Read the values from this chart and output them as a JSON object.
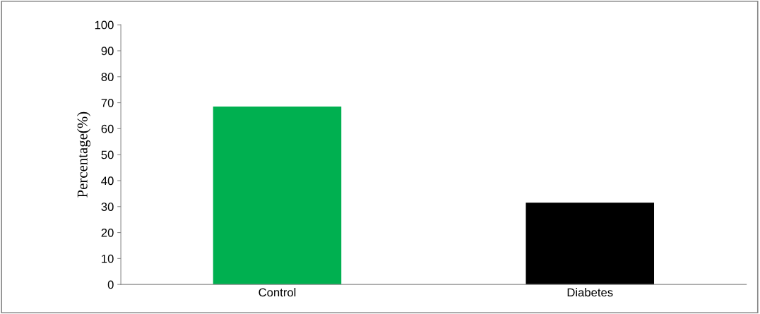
{
  "chart_data": {
    "type": "bar",
    "categories": [
      "Control",
      "Diabetes"
    ],
    "values": [
      68.5,
      31.5
    ],
    "colors": [
      "#00b050",
      "#000000"
    ],
    "ylabel": "Percentage(%)",
    "ylim": [
      0,
      100
    ],
    "yticks": [
      0,
      10,
      20,
      30,
      40,
      50,
      60,
      70,
      80,
      90,
      100
    ],
    "grid": false
  }
}
